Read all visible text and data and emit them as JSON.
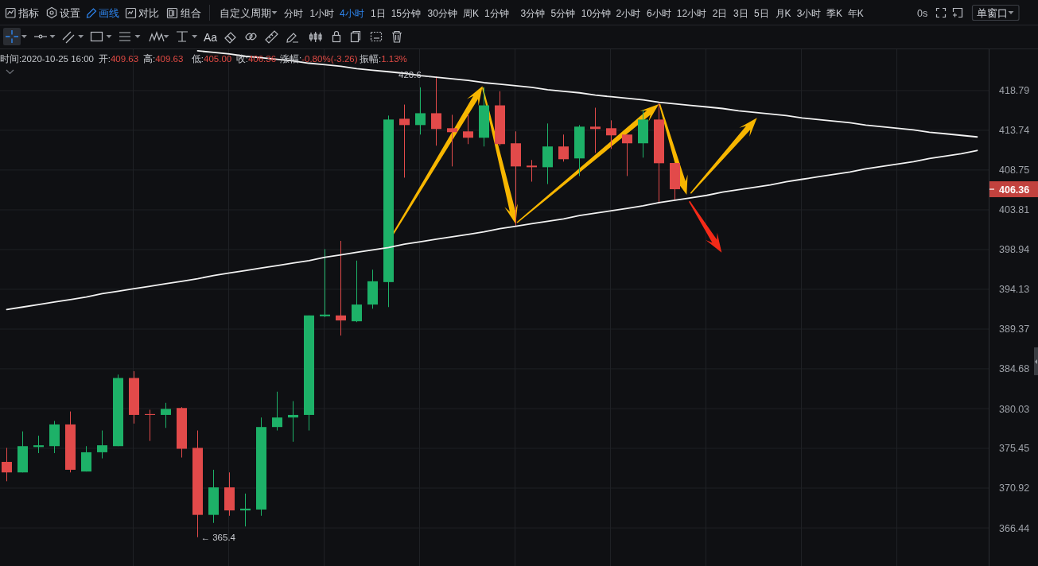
{
  "chart_data": {
    "type": "candlestick",
    "categories": [
      null,
      null,
      null,
      null,
      null,
      null,
      null,
      null,
      null,
      null,
      null,
      null,
      null,
      null,
      null,
      null,
      null,
      null,
      null,
      null,
      null,
      null,
      null,
      null,
      null,
      null,
      null,
      null,
      null,
      null,
      null,
      null,
      null,
      null,
      null,
      null,
      null,
      null,
      null,
      null,
      null,
      null,
      null,
      null,
      null,
      null,
      null,
      null,
      null,
      null,
      null,
      null,
      null,
      null,
      null,
      null,
      null,
      null,
      null,
      null,
      null,
      null
    ],
    "ohlc": [
      [
        373.9,
        375.5,
        371.7,
        372.7
      ],
      [
        372.7,
        377.4,
        372.7,
        375.7
      ],
      [
        375.6,
        376.9,
        374.9,
        375.8
      ],
      [
        375.7,
        378.6,
        374.9,
        378.2
      ],
      [
        378.2,
        379.7,
        372.7,
        373.0
      ],
      [
        372.8,
        375.7,
        372.8,
        375.0
      ],
      [
        375.0,
        377.5,
        374.3,
        375.8
      ],
      [
        375.7,
        384.0,
        375.7,
        383.6
      ],
      [
        383.6,
        384.4,
        378.3,
        379.3
      ],
      [
        379.4,
        379.9,
        376.3,
        379.3
      ],
      [
        379.3,
        380.7,
        377.8,
        380.0
      ],
      [
        380.1,
        380.2,
        374.4,
        375.4
      ],
      [
        375.5,
        377.5,
        365.4,
        367.9
      ],
      [
        367.9,
        373.0,
        367.0,
        371.0
      ],
      [
        371.0,
        372.7,
        367.8,
        368.4
      ],
      [
        368.4,
        370.3,
        366.6,
        368.6
      ],
      [
        368.5,
        379.0,
        367.8,
        377.9
      ],
      [
        377.9,
        382.0,
        377.5,
        379.0
      ],
      [
        379.0,
        380.9,
        376.2,
        379.3
      ],
      [
        379.3,
        391.0,
        377.5,
        391.0
      ],
      [
        390.9,
        399.0,
        390.8,
        391.1
      ],
      [
        391.0,
        400.0,
        388.6,
        390.4
      ],
      [
        390.3,
        397.6,
        390.2,
        392.3
      ],
      [
        392.3,
        396.5,
        391.8,
        395.1
      ],
      [
        395.0,
        415.6,
        392.0,
        415.1
      ],
      [
        415.2,
        417.0,
        407.8,
        414.4
      ],
      [
        414.4,
        419.2,
        413.2,
        415.9
      ],
      [
        415.9,
        420.6,
        411.8,
        413.9
      ],
      [
        414.0,
        415.7,
        409.2,
        413.5
      ],
      [
        413.6,
        415.8,
        412.0,
        412.8
      ],
      [
        412.8,
        419.2,
        411.7,
        416.9
      ],
      [
        416.9,
        418.7,
        411.8,
        412.0
      ],
      [
        412.1,
        413.6,
        401.8,
        409.2
      ],
      [
        409.3,
        410.0,
        407.3,
        409.1
      ],
      [
        409.1,
        414.6,
        407.0,
        411.7
      ],
      [
        411.7,
        413.2,
        409.8,
        410.1
      ],
      [
        410.2,
        414.4,
        408.0,
        414.2
      ],
      [
        414.2,
        416.6,
        410.9,
        413.9
      ],
      [
        414.0,
        415.0,
        411.4,
        413.1
      ],
      [
        413.2,
        413.2,
        408.0,
        412.1
      ],
      [
        412.1,
        416.3,
        410.3,
        415.1
      ],
      [
        415.1,
        417.3,
        404.6,
        409.6
      ],
      [
        409.63,
        409.63,
        405.0,
        406.36
      ],
      null,
      null,
      null,
      null,
      null,
      null,
      null,
      null,
      null,
      null,
      null,
      null,
      null,
      null,
      null,
      null,
      null,
      null,
      null
    ],
    "colors": [
      "#e24a4a",
      "#1db168",
      "#1db168",
      "#1db168",
      "#e24a4a",
      "#1db168",
      "#1db168",
      "#1db168",
      "#e24a4a",
      "#e24a4a",
      "#1db168",
      "#e24a4a",
      "#e24a4a",
      "#1db168",
      "#e24a4a",
      "#1db168",
      "#1db168",
      "#1db168",
      "#1db168",
      "#1db168",
      "#1db168",
      "#e24a4a",
      "#1db168",
      "#1db168",
      "#1db168",
      "#e24a4a",
      "#1db168",
      "#e24a4a",
      "#e24a4a",
      "#e24a4a",
      "#1db168",
      "#e24a4a",
      "#e24a4a",
      "#e24a4a",
      "#1db168",
      "#e24a4a",
      "#1db168",
      "#e24a4a",
      "#e24a4a",
      "#e24a4a",
      "#1db168",
      "#e24a4a",
      "#e24a4a",
      null,
      null,
      null,
      null,
      null,
      null,
      null,
      null,
      null,
      null,
      null,
      null,
      null,
      null,
      null,
      null,
      null,
      null,
      null
    ],
    "series": [
      {
        "type": "line",
        "color": "#f2f2f2",
        "values": [
          null,
          null,
          null,
          null,
          null,
          null,
          null,
          null,
          null,
          null,
          null,
          null,
          423.9,
          423.7,
          423.5,
          423.2,
          423.0,
          422.8,
          422.6,
          422.3,
          422.1,
          421.9,
          421.6,
          421.4,
          421.2,
          421.0,
          420.7,
          420.5,
          420.3,
          420.1,
          419.8,
          419.6,
          419.4,
          419.2,
          418.9,
          418.7,
          418.5,
          418.2,
          418.0,
          417.8,
          417.6,
          417.3,
          417.1,
          416.9,
          416.7,
          416.5,
          416.2,
          416.0,
          415.8,
          415.6,
          415.3,
          415.1,
          414.9,
          414.7,
          414.4,
          414.2,
          414.0,
          413.8,
          413.5,
          413.3,
          413.1,
          412.9
        ]
      },
      {
        "type": "line",
        "color": "#f2f2f2",
        "values": [
          391.7,
          392.0,
          392.3,
          392.6,
          392.9,
          393.2,
          393.6,
          393.9,
          394.2,
          394.5,
          394.8,
          395.1,
          395.4,
          395.8,
          396.1,
          396.4,
          396.7,
          397.0,
          397.3,
          397.6,
          398.0,
          398.3,
          398.6,
          398.9,
          399.2,
          399.6,
          399.9,
          400.2,
          400.5,
          400.8,
          401.1,
          401.5,
          401.8,
          402.1,
          402.4,
          402.7,
          403.1,
          403.4,
          403.7,
          404.0,
          404.3,
          404.7,
          405.0,
          405.3,
          405.6,
          406.0,
          406.3,
          406.6,
          406.9,
          407.3,
          407.6,
          407.9,
          408.2,
          408.5,
          408.9,
          409.2,
          409.5,
          409.8,
          410.2,
          410.5,
          410.8,
          411.2
        ]
      }
    ],
    "ylim": [
      362.2,
      424.1
    ],
    "yticks": [
      366.44,
      370.92,
      375.45,
      380.03,
      384.68,
      389.37,
      394.13,
      398.94,
      403.81,
      408.75,
      413.74,
      418.79
    ],
    "log": true,
    "grid": true,
    "tick_labels": "y",
    "annotations": [
      "指标",
      "设置",
      "画线",
      "对比",
      "组合",
      "自定义周期",
      "分时",
      "1小时",
      "4小时",
      "1日",
      "15分钟",
      "30分钟",
      "周K",
      "1分钟",
      "3分钟",
      "5分钟",
      "10分钟",
      "2小时",
      "6小时",
      "12小时",
      "2日",
      "3日",
      "5日",
      "月K",
      "3小时",
      "季K",
      "年K",
      "0s",
      "单窗口",
      "Aa",
      "时间:2020-10-25 16:00",
      "开:409.63",
      "高:409.63",
      "低:405.00",
      "收:406.36",
      "涨幅:-0.80%(-3.26)",
      "振幅:1.13%",
      {
        "text": "420.6 →",
        "y": 420.6
      },
      "← 365.4",
      "406.36"
    ]
  }
}
